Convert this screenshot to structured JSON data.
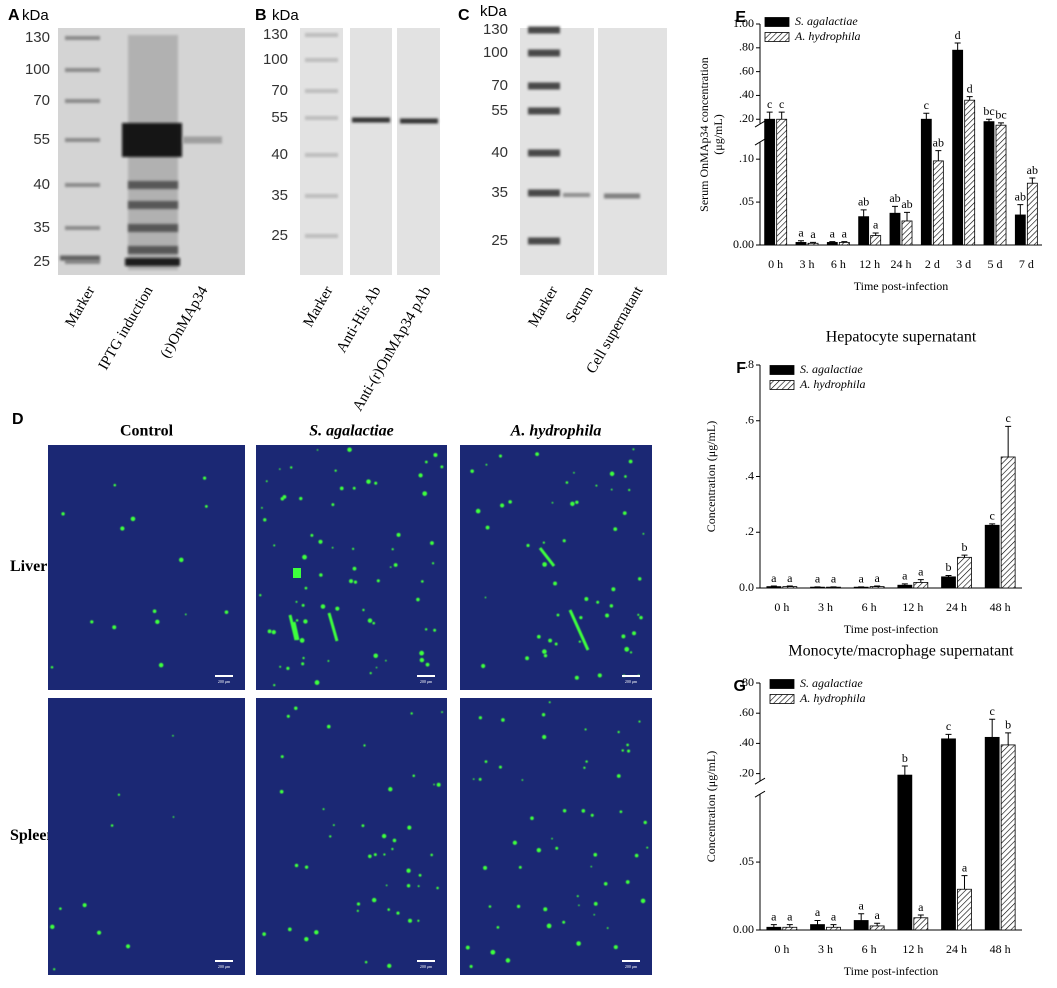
{
  "gels": [
    {
      "panel": "A",
      "unit": "kDa",
      "ladder": [
        130,
        100,
        70,
        55,
        40,
        35,
        25
      ],
      "lanes": [
        "Marker",
        "IPTG induction",
        "(r)OnMAp34"
      ]
    },
    {
      "panel": "B",
      "unit": "kDa",
      "ladder": [
        130,
        100,
        70,
        55,
        40,
        35,
        25
      ],
      "lanes": [
        "Marker",
        "Anti-His Ab",
        "Anti-(r)OnMAp34 pAb"
      ]
    },
    {
      "panel": "C",
      "unit": "kDa",
      "ladder": [
        130,
        100,
        70,
        55,
        40,
        35,
        25
      ],
      "lanes": [
        "Marker",
        "Serum",
        "Cell supernatant"
      ]
    }
  ],
  "panel_d": {
    "panel": "D",
    "columns": [
      "Control",
      "S. agalactiae",
      "A. hydrophila"
    ],
    "rows": [
      "Liver",
      "Spleen"
    ],
    "scale_bar": "200 μm"
  },
  "chart_data": [
    {
      "type": "bar",
      "panel": "E",
      "ylabel": [
        "Serum OnMAp34 concentration",
        "(μg/mL)"
      ],
      "xlabel": "Time post-infection",
      "categories": [
        "0 h",
        "3 h",
        "6 h",
        "12 h",
        "24 h",
        "2 d",
        "3 d",
        "5 d",
        "7 d"
      ],
      "series": [
        {
          "name": "S. agalactiae",
          "color": "#000000",
          "pattern": "solid",
          "values": [
            0.2,
            0.003,
            0.003,
            0.033,
            0.037,
            0.2,
            0.78,
            0.18,
            0.035
          ],
          "errors": [
            0.06,
            0.002,
            0.001,
            0.008,
            0.008,
            0.05,
            0.06,
            0.02,
            0.012
          ],
          "letters": [
            "c",
            "a",
            "a",
            "ab",
            "ab",
            "c",
            "d",
            "bc",
            "ab"
          ]
        },
        {
          "name": "A. hydrophila",
          "color": "#000000",
          "pattern": "hatch",
          "values": [
            0.2,
            0.002,
            0.003,
            0.011,
            0.028,
            0.098,
            0.36,
            0.15,
            0.072
          ],
          "errors": [
            0.06,
            0.001,
            0.001,
            0.003,
            0.01,
            0.012,
            0.03,
            0.02,
            0.006
          ],
          "letters": [
            "c",
            "a",
            "a",
            "a",
            "ab",
            "ab",
            "d",
            "bc",
            "ab"
          ]
        }
      ],
      "ylim": [
        0,
        1
      ],
      "ybreak": [
        0.12,
        0.16
      ],
      "yticks": [
        {
          "value": 0,
          "label": "0.00"
        },
        {
          "value": 0.05,
          "label": ".05"
        },
        {
          "value": 0.1,
          "label": ".10"
        },
        {
          "value": 0.2,
          "label": ".20"
        },
        {
          "value": 0.4,
          "label": ".40"
        },
        {
          "value": 0.6,
          "label": ".60"
        },
        {
          "value": 0.8,
          "label": ".80"
        },
        {
          "value": 1,
          "label": "1.00"
        }
      ],
      "legend": "upper left"
    },
    {
      "type": "bar",
      "panel": "F",
      "title": "Hepatocyte supernatant",
      "ylabel": [
        "Concentration (μg/mL)"
      ],
      "xlabel": "Time post-infection",
      "categories": [
        "0 h",
        "3 h",
        "6 h",
        "12 h",
        "24 h",
        "48 h"
      ],
      "series": [
        {
          "name": "S. agalactiae",
          "color": "#000000",
          "pattern": "solid",
          "values": [
            0.005,
            0.003,
            0.003,
            0.01,
            0.04,
            0.225
          ],
          "errors": [
            0.002,
            0.001,
            0.001,
            0.005,
            0.005,
            0.005
          ],
          "letters": [
            "a",
            "a",
            "a",
            "a",
            "b",
            "c"
          ]
        },
        {
          "name": "A. hydrophila",
          "color": "#000000",
          "pattern": "hatch",
          "values": [
            0.005,
            0.003,
            0.005,
            0.02,
            0.11,
            0.47
          ],
          "errors": [
            0.002,
            0.001,
            0.002,
            0.01,
            0.008,
            0.11
          ],
          "letters": [
            "a",
            "a",
            "a",
            "a",
            "b",
            "c"
          ]
        }
      ],
      "ylim": [
        0,
        0.8
      ],
      "yticks": [
        {
          "value": 0,
          "label": "0.0"
        },
        {
          "value": 0.2,
          "label": ".2"
        },
        {
          "value": 0.4,
          "label": ".4"
        },
        {
          "value": 0.6,
          "label": ".6"
        },
        {
          "value": 0.8,
          "label": ".8"
        }
      ],
      "legend": "upper left"
    },
    {
      "type": "bar",
      "panel": "G",
      "title": "Monocyte/macrophage supernatant",
      "ylabel": [
        "Concentration (μg/mL)"
      ],
      "xlabel": "Time post-infection",
      "categories": [
        "0 h",
        "3 h",
        "6 h",
        "12 h",
        "24 h",
        "48 h"
      ],
      "series": [
        {
          "name": "S. agalactiae",
          "color": "#000000",
          "pattern": "solid",
          "values": [
            0.002,
            0.004,
            0.007,
            0.19,
            0.43,
            0.44
          ],
          "errors": [
            0.002,
            0.003,
            0.005,
            0.06,
            0.03,
            0.12
          ],
          "letters": [
            "a",
            "a",
            "a",
            "b",
            "c",
            "c"
          ]
        },
        {
          "name": "A. hydrophila",
          "color": "#000000",
          "pattern": "hatch",
          "values": [
            0.002,
            0.002,
            0.003,
            0.009,
            0.03,
            0.39
          ],
          "errors": [
            0.002,
            0.002,
            0.002,
            0.002,
            0.01,
            0.08
          ],
          "letters": [
            "a",
            "a",
            "a",
            "a",
            "a",
            "b"
          ]
        }
      ],
      "ylim": [
        0,
        0.8
      ],
      "ybreak": [
        0.1,
        0.15
      ],
      "yticks": [
        {
          "value": 0,
          "label": "0.00"
        },
        {
          "value": 0.05,
          "label": ".05"
        },
        {
          "value": 0.2,
          "label": ".20"
        },
        {
          "value": 0.4,
          "label": ".40"
        },
        {
          "value": 0.6,
          "label": ".60"
        },
        {
          "value": 0.8,
          "label": ".80"
        }
      ],
      "legend": "upper left"
    }
  ]
}
